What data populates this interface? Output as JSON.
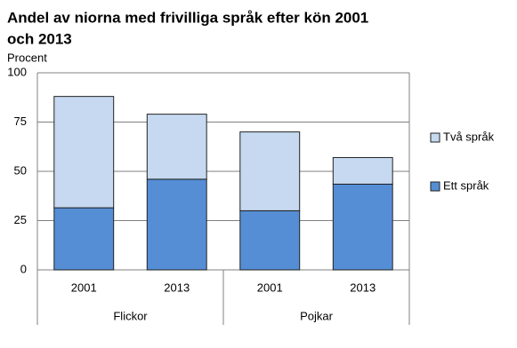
{
  "chart_data": {
    "type": "stacked_bar",
    "title": [
      "Andel av niorna med frivilliga språk efter kön 2001",
      "och 2013"
    ],
    "y_label": "Procent",
    "categories": [
      "2001",
      "2013",
      "2001",
      "2013"
    ],
    "groups": [
      "Flickor",
      "Pojkar"
    ],
    "series": [
      {
        "name": "Ett språk",
        "color": "#558ed5",
        "values": [
          31.5,
          46,
          30,
          43.5
        ]
      },
      {
        "name": "Två språk",
        "color": "#c6d9f1",
        "values": [
          56.5,
          33,
          40,
          13.5
        ]
      }
    ],
    "ylim": [
      0,
      100
    ],
    "yticks": [
      0,
      25,
      50,
      75,
      100
    ],
    "grid": true,
    "legend": "right"
  }
}
